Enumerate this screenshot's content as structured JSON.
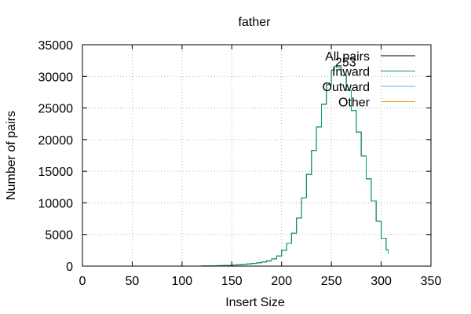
{
  "chart_data": {
    "type": "line",
    "title": "father",
    "xlabel": "Insert Size",
    "ylabel": "Number of pairs",
    "xlim": [
      0,
      350
    ],
    "ylim": [
      0,
      35000
    ],
    "xticks": [
      0,
      50,
      100,
      150,
      200,
      250,
      300,
      350
    ],
    "yticks": [
      0,
      5000,
      10000,
      15000,
      20000,
      25000,
      30000,
      35000
    ],
    "grid": true,
    "legend_position": "top-right",
    "annotations": [
      {
        "text": "253",
        "x": 253,
        "y": 30500
      }
    ],
    "series": [
      {
        "name": "All pairs",
        "color": "#000000",
        "x": [
          115,
          120,
          125,
          130,
          135,
          140,
          145,
          150,
          155,
          160,
          165,
          170,
          175,
          180,
          185,
          190,
          195,
          200,
          205,
          210,
          215,
          220,
          225,
          230,
          235,
          240,
          245,
          250,
          253,
          255,
          260,
          265,
          270,
          275,
          280,
          285,
          290,
          295,
          300,
          305,
          307
        ],
        "y": [
          0,
          20,
          40,
          60,
          80,
          100,
          130,
          170,
          220,
          280,
          350,
          420,
          520,
          650,
          850,
          1150,
          1600,
          2500,
          3600,
          5200,
          7600,
          10800,
          14500,
          18300,
          22000,
          25600,
          28700,
          31000,
          31600,
          31400,
          30200,
          27800,
          24600,
          21200,
          17400,
          13800,
          10300,
          7100,
          4400,
          2600,
          2000
        ]
      },
      {
        "name": "Inward",
        "color": "#009e73",
        "x": [
          115,
          120,
          125,
          130,
          135,
          140,
          145,
          150,
          155,
          160,
          165,
          170,
          175,
          180,
          185,
          190,
          195,
          200,
          205,
          210,
          215,
          220,
          225,
          230,
          235,
          240,
          245,
          250,
          253,
          255,
          260,
          265,
          270,
          275,
          280,
          285,
          290,
          295,
          300,
          305,
          307
        ],
        "y": [
          0,
          20,
          40,
          60,
          80,
          100,
          130,
          170,
          220,
          280,
          350,
          420,
          520,
          650,
          850,
          1150,
          1600,
          2500,
          3600,
          5200,
          7600,
          10800,
          14500,
          18300,
          22000,
          25600,
          28700,
          31000,
          31600,
          31400,
          30200,
          27800,
          24600,
          21200,
          17400,
          13800,
          10300,
          7100,
          4400,
          2600,
          2000
        ]
      },
      {
        "name": "Outward",
        "color": "#56b4e9",
        "x": [],
        "y": []
      },
      {
        "name": "Other",
        "color": "#e69f00",
        "x": [],
        "y": []
      }
    ]
  }
}
